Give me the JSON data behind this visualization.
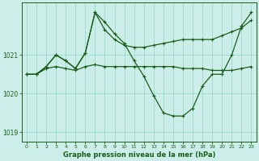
{
  "title": "Graphe pression niveau de la mer (hPa)",
  "background_color": "#cceee8",
  "grid_color": "#99ddcc",
  "line_color": "#1a5c1a",
  "ylim": [
    1018.75,
    1022.35
  ],
  "xlim": [
    -0.5,
    23.5
  ],
  "yticks": [
    1019,
    1020,
    1021
  ],
  "xticks": [
    0,
    1,
    2,
    3,
    4,
    5,
    6,
    7,
    8,
    9,
    10,
    11,
    12,
    13,
    14,
    15,
    16,
    17,
    18,
    19,
    20,
    21,
    22,
    23
  ],
  "series1_x": [
    0,
    1,
    2,
    3,
    4,
    5,
    6,
    7,
    8,
    9,
    10,
    11,
    12,
    13,
    14,
    15,
    16,
    17,
    18,
    19,
    20,
    21,
    22,
    23
  ],
  "series1_y": [
    1020.5,
    1020.5,
    1020.65,
    1020.7,
    1020.65,
    1020.6,
    1020.7,
    1020.75,
    1020.7,
    1020.7,
    1020.7,
    1020.7,
    1020.7,
    1020.7,
    1020.7,
    1020.7,
    1020.65,
    1020.65,
    1020.65,
    1020.6,
    1020.6,
    1020.6,
    1020.65,
    1020.7
  ],
  "series2_x": [
    0,
    1,
    2,
    3,
    4,
    5,
    6,
    7,
    8,
    9,
    10,
    11,
    12,
    13,
    14,
    15,
    16,
    17,
    18,
    19,
    20,
    21,
    22,
    23
  ],
  "series2_y": [
    1020.5,
    1020.5,
    1020.7,
    1021.0,
    1020.85,
    1020.65,
    1021.05,
    1022.1,
    1021.65,
    1021.4,
    1021.25,
    1021.2,
    1021.2,
    1021.25,
    1021.3,
    1021.35,
    1021.4,
    1021.4,
    1021.4,
    1021.4,
    1021.5,
    1021.6,
    1021.7,
    1021.9
  ],
  "series3_x": [
    0,
    1,
    2,
    3,
    4,
    5,
    6,
    7,
    8,
    9,
    10,
    11,
    12,
    13,
    14,
    15,
    16,
    17,
    18,
    19,
    20,
    21,
    22,
    23
  ],
  "series3_y": [
    1020.5,
    1020.5,
    1020.7,
    1021.0,
    1020.85,
    1020.65,
    1021.05,
    1022.1,
    1021.85,
    1021.55,
    1021.3,
    1020.85,
    1020.45,
    1019.95,
    1019.5,
    1019.42,
    1019.42,
    1019.62,
    1020.2,
    1020.5,
    1020.5,
    1021.0,
    1021.75,
    1022.1
  ]
}
